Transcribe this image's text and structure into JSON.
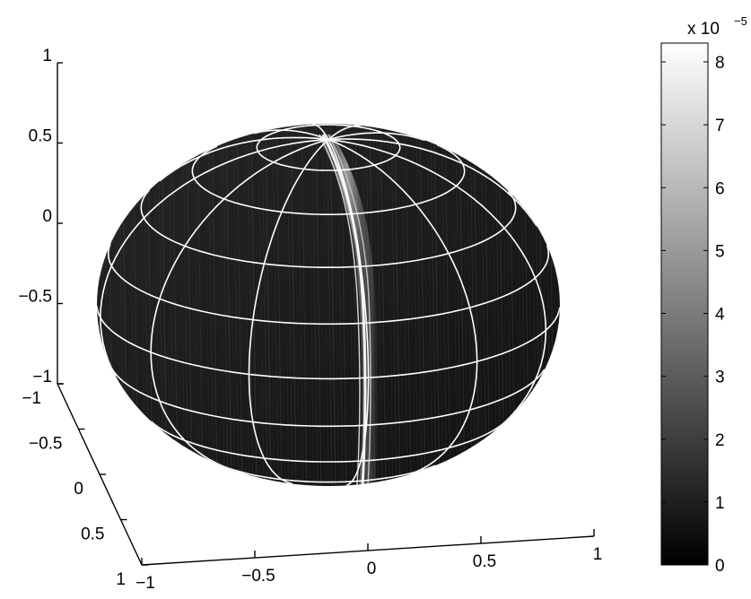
{
  "chart_data": {
    "type": "surface",
    "surface": "unit sphere",
    "colormap": "gray",
    "grid": true,
    "axes": {
      "x": {
        "ticks": [
          -1,
          -0.5,
          0,
          0.5,
          1
        ],
        "tick_labels": [
          "−1",
          "−0.5",
          "0",
          "0.5",
          "1"
        ]
      },
      "y": {
        "ticks": [
          -1,
          -0.5,
          0,
          0.5,
          1
        ],
        "tick_labels": [
          "−1",
          "−0.5",
          "0",
          "0.5",
          "1"
        ]
      },
      "z": {
        "ticks": [
          -1,
          -0.5,
          0,
          0.5,
          1
        ],
        "tick_labels": [
          "−1",
          "−0.5",
          "0",
          "0.5",
          "1"
        ]
      }
    },
    "colorbar": {
      "multiplier_base": "x 10",
      "multiplier_exponent": "−5",
      "range": [
        0,
        8.3
      ],
      "ticks": [
        0,
        1,
        2,
        3,
        4,
        5,
        6,
        7,
        8
      ],
      "tick_labels": [
        "0",
        "1",
        "2",
        "3",
        "4",
        "5",
        "6",
        "7",
        "8"
      ]
    }
  }
}
